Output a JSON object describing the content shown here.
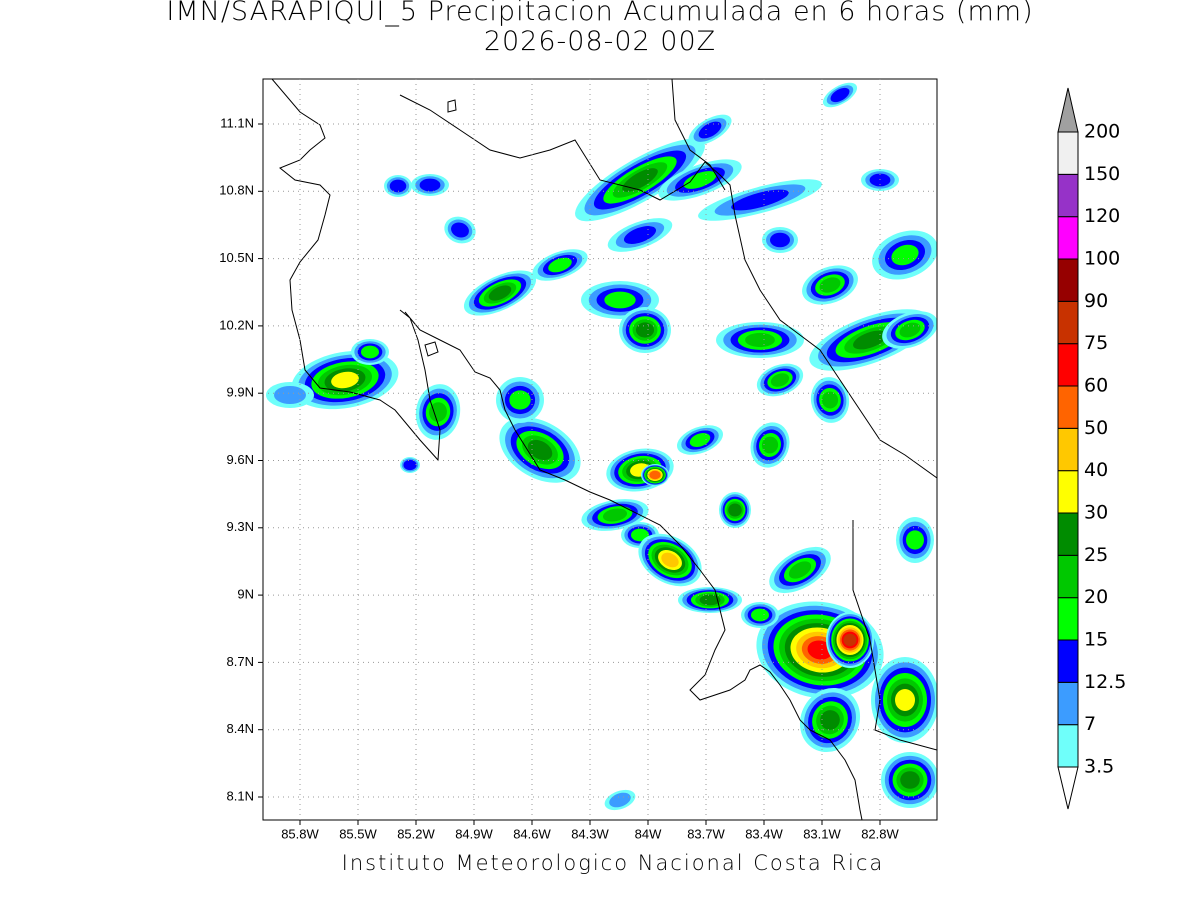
{
  "title": "IMN/SARAPIQUI_5 Precipitacion Acumulada en 6 horas (mm)",
  "subtitle": "2026-08-02 00Z",
  "map": {
    "x_ticks": [
      "85.8W",
      "85.5W",
      "85.2W",
      "84.9W",
      "84.6W",
      "84.3W",
      "84W",
      "83.7W",
      "83.4W",
      "83.1W",
      "82.8W"
    ],
    "y_ticks": [
      "11.1N",
      "10.8N",
      "10.5N",
      "10.2N",
      "9.9N",
      "9.6N",
      "9.3N",
      "9N",
      "8.7N",
      "8.4N",
      "8.1N"
    ]
  },
  "legend": {
    "levels": [
      3.5,
      7,
      12.5,
      15,
      20,
      25,
      30,
      40,
      50,
      60,
      75,
      90,
      100,
      120,
      150,
      200
    ],
    "colors": [
      "#6ffffa",
      "#3c9cff",
      "#0000ff",
      "#00ff00",
      "#00c800",
      "#008c00",
      "#ffff00",
      "#ffc800",
      "#ff6400",
      "#ff0000",
      "#c83200",
      "#960000",
      "#ff00ff",
      "#9632c8",
      "#f0f0f0"
    ]
  },
  "footer": "Instituto Meteorologico Nacional Costa Rica"
}
